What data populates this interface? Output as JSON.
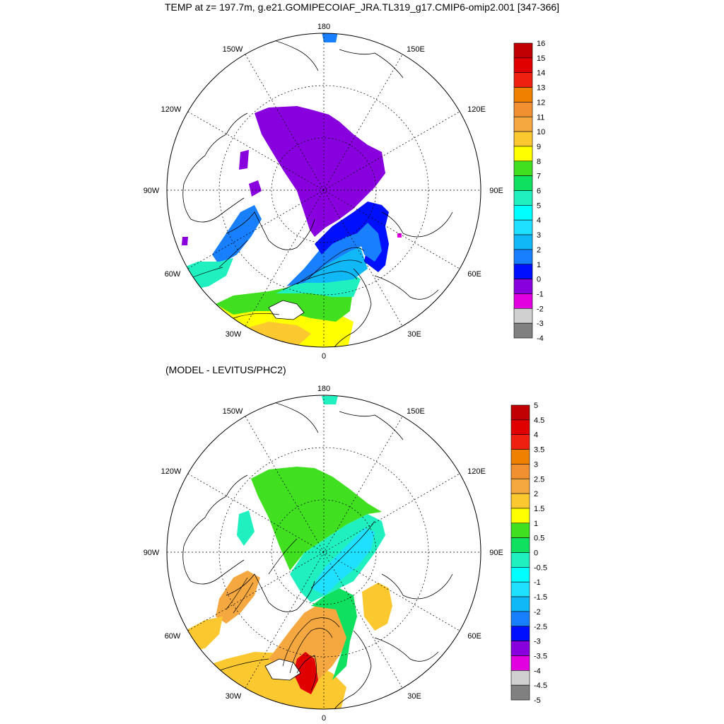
{
  "titles": {
    "main": "TEMP at z= 197.7m, g.e21.GOMIPECOIAF_JRA.TL319_g17.CMIP6-omip2.001 [347-366]",
    "sub": "(MODEL - LEVITUS/PHC2)"
  },
  "map_labels": {
    "lon_180": "180",
    "lon_150w": "150W",
    "lon_150e": "150E",
    "lon_120w": "120W",
    "lon_120e": "120E",
    "lon_90w": "90W",
    "lon_90e": "90E",
    "lon_60w": "60W",
    "lon_60e": "60E",
    "lon_30w": "30W",
    "lon_30e": "30E",
    "lon_0": "0"
  },
  "colorbars": {
    "top": {
      "labels": [
        "16",
        "15",
        "14",
        "13",
        "12",
        "11",
        "10",
        "9",
        "8",
        "7",
        "6",
        "5",
        "4",
        "3",
        "2",
        "1",
        "0",
        "-1",
        "-2",
        "-3",
        "-4"
      ],
      "colors": [
        "#c00000",
        "#e00000",
        "#f02010",
        "#f08000",
        "#f09030",
        "#f5a840",
        "#fcc830",
        "#ffff00",
        "#40e020",
        "#10e060",
        "#20f0c0",
        "#00ffff",
        "#20e0ff",
        "#10b8f8",
        "#1880ff",
        "#0010ff",
        "#8800dd",
        "#e000e0",
        "#d0d0d0",
        "#808080"
      ]
    },
    "bottom": {
      "labels": [
        "5",
        "4.5",
        "4",
        "3.5",
        "3",
        "2.5",
        "2",
        "1.5",
        "1",
        "0.5",
        "0",
        "-0.5",
        "-1",
        "-1.5",
        "-2",
        "-2.5",
        "-3",
        "-3.5",
        "-4",
        "-4.5",
        "-5"
      ],
      "colors": [
        "#c00000",
        "#e00000",
        "#f02010",
        "#f08000",
        "#f09030",
        "#f5a840",
        "#fcc830",
        "#ffff00",
        "#40e020",
        "#10e060",
        "#20f0c0",
        "#00ffff",
        "#20e0ff",
        "#10b8f8",
        "#1880ff",
        "#0010ff",
        "#8800dd",
        "#e000e0",
        "#d0d0d0",
        "#808080"
      ]
    }
  },
  "field_colors": {
    "top": {
      "arctic_basin": "#8800dd",
      "fringe": "#0010ff",
      "fram_inflow": "#1880ff",
      "barents": "#10b8f8",
      "norwegian": "#20f0c0",
      "nordic_warm": "#40e020",
      "atlantic_warm": "#ffff00",
      "atlantic_warmer": "#fcc830",
      "labrador": "#20f0c0",
      "baffin": "#1880ff",
      "caa_patches": "#8800dd",
      "kara_patch": "#e000e0"
    },
    "bottom": {
      "arctic_basin": "#40e020",
      "eurasian": "#20f0c0",
      "siberian_shelf": "#20e0ff",
      "barents": "#10e060",
      "kara": "#fcc830",
      "nordic": "#f5a840",
      "nordic_hot": "#e00000",
      "atlantic": "#fcc830",
      "baffin": "#f5a840",
      "caa": "#20f0c0"
    }
  }
}
